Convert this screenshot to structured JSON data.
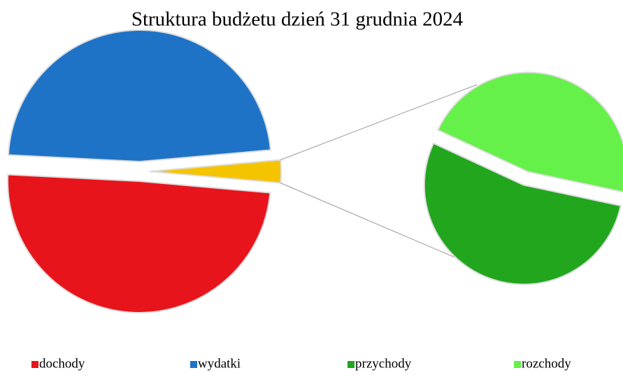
{
  "chart_data": {
    "type": "pie-of-pie",
    "title": "Struktura budżetu dzień 31 grudnia 2024",
    "categories": [
      "dochody",
      "wydatki",
      "przychody",
      "rozchody"
    ],
    "values": [
      49.4,
      47.8,
      1.5,
      1.3
    ],
    "colors": [
      "#e8141b",
      "#1f73c7",
      "#22a61e",
      "#66f04a"
    ],
    "other_color": "#f5c400",
    "secondary_count": 2,
    "legend": "bottom"
  }
}
